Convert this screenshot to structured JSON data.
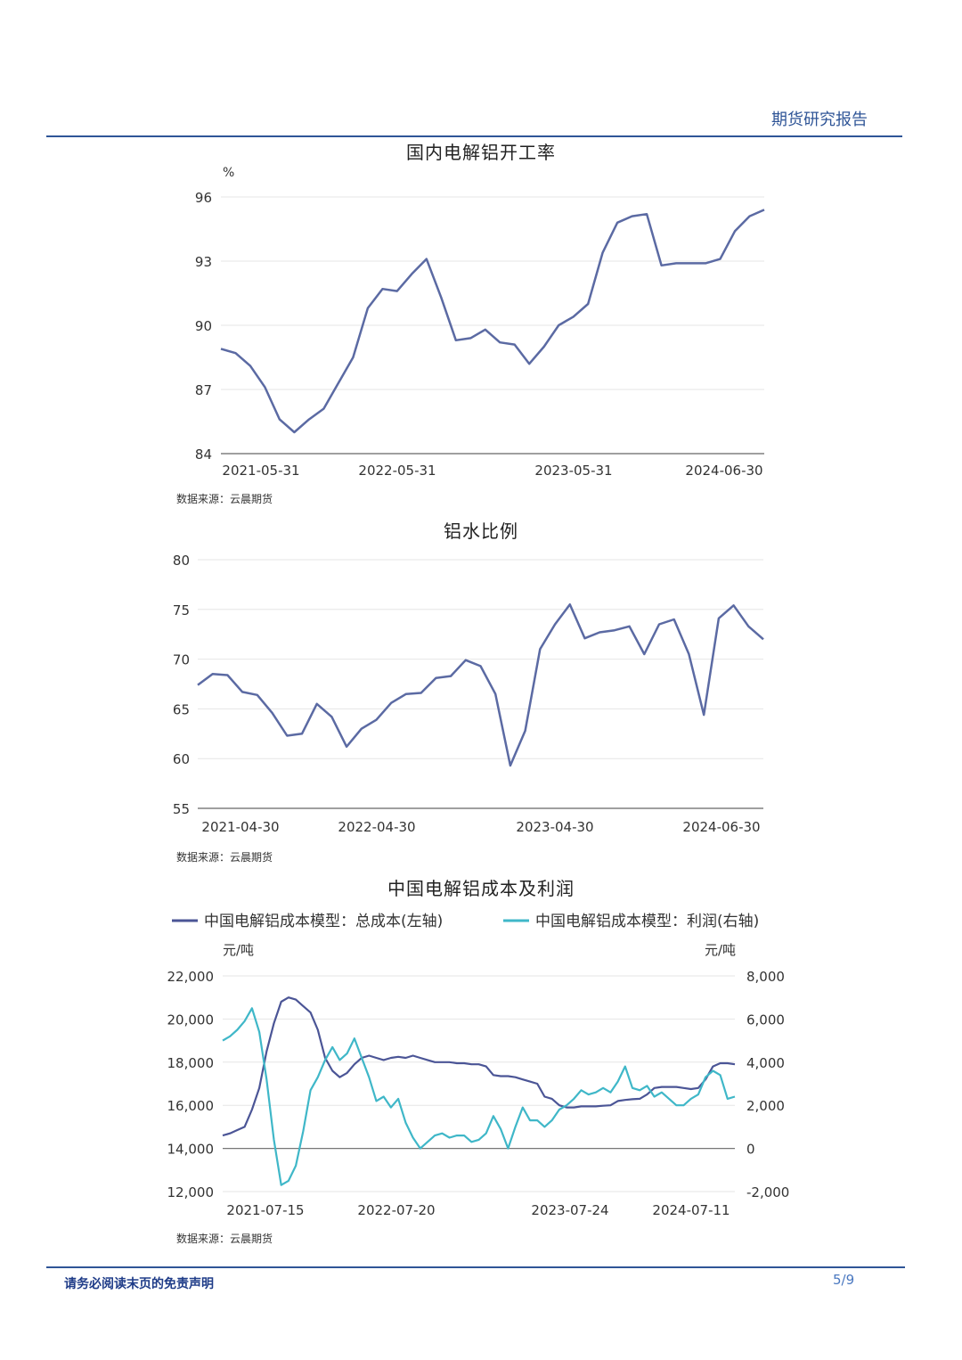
{
  "header": {
    "report_label": "期货研究报告"
  },
  "footer": {
    "disclaimer": "请务必阅读末页的免责声明",
    "page": "5/9"
  },
  "charts": {
    "c1": {
      "title": "国内电解铝开工率",
      "source": "数据来源：云晨期货"
    },
    "c2": {
      "title": "铝水比例",
      "source": "数据来源：云晨期货"
    },
    "c3": {
      "title": "中国电解铝成本及利润",
      "source": "数据来源：云晨期货"
    }
  },
  "chart_data": [
    {
      "type": "line",
      "title": "国内电解铝开工率",
      "ylabel": "%",
      "ylim": [
        84,
        96
      ],
      "yticks": [
        "96",
        "93",
        "90",
        "87",
        "84"
      ],
      "xtick_labels": [
        "2021-05-31",
        "2022-05-31",
        "2023-05-31",
        "2024-06-30"
      ],
      "grid": true,
      "color": "#5b6aa3",
      "series": [
        {
          "values": [
            88.9,
            88.7,
            88.1,
            87.1,
            85.6,
            85.0,
            85.6,
            86.1,
            87.3,
            88.5,
            90.8,
            91.7,
            91.6,
            92.4,
            93.1,
            91.3,
            89.3,
            89.4,
            89.8,
            89.2,
            89.1,
            88.2,
            89.0,
            90.0,
            90.4,
            91.0,
            93.4,
            94.8,
            95.1,
            95.2,
            92.8,
            92.9,
            92.9,
            92.9,
            93.1,
            94.4,
            95.1,
            95.4
          ]
        }
      ]
    },
    {
      "type": "line",
      "title": "铝水比例",
      "ylim": [
        55,
        80
      ],
      "yticks": [
        "80",
        "75",
        "70",
        "65",
        "60",
        "55"
      ],
      "xtick_labels": [
        "2021-04-30",
        "2022-04-30",
        "2023-04-30",
        "2024-06-30"
      ],
      "grid": true,
      "color": "#5b6aa3",
      "series": [
        {
          "values": [
            67.4,
            68.5,
            68.4,
            66.7,
            66.4,
            64.6,
            62.3,
            62.5,
            65.5,
            64.2,
            61.2,
            63.0,
            63.9,
            65.6,
            66.5,
            66.6,
            68.1,
            68.3,
            69.9,
            69.3,
            66.5,
            59.3,
            62.8,
            71.0,
            73.5,
            75.5,
            72.1,
            72.7,
            72.9,
            73.3,
            70.5,
            73.5,
            74.0,
            70.5,
            64.4,
            74.1,
            75.4,
            73.3,
            72.0
          ]
        }
      ]
    },
    {
      "type": "line",
      "title": "中国电解铝成本及利润",
      "legend": "top",
      "y_left_label": "元/吨",
      "y_right_label": "元/吨",
      "ylim_left": [
        12000,
        22000
      ],
      "ylim_right": [
        -2000,
        8000
      ],
      "yticks_left": [
        "22,000",
        "20,000",
        "18,000",
        "16,000",
        "14,000",
        "12,000"
      ],
      "yticks_right": [
        "8,000",
        "6,000",
        "4,000",
        "2,000",
        "0",
        "-2,000"
      ],
      "xtick_labels": [
        "2021-07-15",
        "2022-07-20",
        "2023-07-24",
        "2024-07-11"
      ],
      "grid": true,
      "series": [
        {
          "name": "中国电解铝成本模型：总成本(左轴)",
          "axis": "left",
          "color": "#4b5596",
          "values": [
            14600,
            14700,
            14850,
            15000,
            15800,
            16800,
            18500,
            19800,
            20800,
            21000,
            20900,
            20600,
            20300,
            19500,
            18200,
            17600,
            17300,
            17500,
            17900,
            18200,
            18300,
            18200,
            18100,
            18200,
            18250,
            18200,
            18300,
            18200,
            18100,
            18000,
            18000,
            18000,
            17950,
            17950,
            17900,
            17900,
            17800,
            17400,
            17350,
            17350,
            17300,
            17200,
            17100,
            17000,
            16400,
            16300,
            16000,
            15900,
            15900,
            15950,
            15950,
            15950,
            15980,
            16000,
            16200,
            16250,
            16280,
            16300,
            16500,
            16800,
            16850,
            16850,
            16850,
            16800,
            16750,
            16800,
            17200,
            17800,
            17950,
            17950,
            17900
          ]
        },
        {
          "name": "中国电解铝成本模型：利润(右轴)",
          "axis": "right",
          "color": "#3fb7c8",
          "values": [
            5000,
            5200,
            5500,
            5900,
            6500,
            5400,
            3200,
            400,
            -1700,
            -1500,
            -800,
            800,
            2700,
            3300,
            4100,
            4700,
            4100,
            4400,
            5100,
            4200,
            3300,
            2200,
            2400,
            1900,
            2300,
            1200,
            500,
            0,
            300,
            600,
            700,
            500,
            600,
            600,
            300,
            400,
            700,
            1500,
            900,
            0,
            1000,
            1900,
            1300,
            1300,
            1000,
            1300,
            1800,
            2000,
            2300,
            2700,
            2500,
            2600,
            2800,
            2600,
            3100,
            3800,
            2800,
            2700,
            2900,
            2400,
            2600,
            2300,
            2000,
            2000,
            2300,
            2500,
            3300,
            3600,
            3400,
            2300,
            2400
          ]
        }
      ]
    }
  ]
}
